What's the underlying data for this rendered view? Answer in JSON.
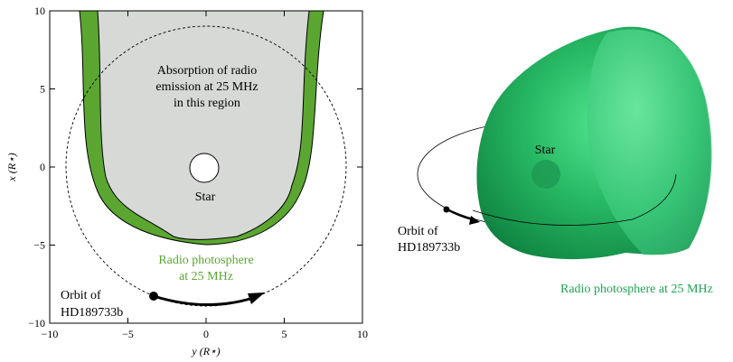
{
  "left_panel": {
    "x_axis_label": "y (R⋆)",
    "y_axis_label": "x (R⋆)",
    "x_ticks": [
      "−10",
      "−5",
      "0",
      "5",
      "10"
    ],
    "y_ticks": [
      "10",
      "5",
      "0",
      "−5",
      "−10"
    ],
    "absorption_text": [
      "Absorption of radio",
      "emission at 25 MHz",
      "in this region"
    ],
    "star_label": "Star",
    "photosphere_text": [
      "Radio photosphere",
      "at 25 MHz"
    ],
    "orbit_text": [
      "Orbit of",
      "HD189733b"
    ]
  },
  "right_panel": {
    "star_label": "Star",
    "orbit_text": [
      "Orbit of",
      "HD189733b"
    ],
    "photosphere_text": "Radio photosphere at 25 MHz"
  },
  "colors": {
    "photosphere_green": "#5aa631",
    "absorption_gray": "#d6d9d6",
    "label_green": "#5aa631",
    "label_green_3d": "#1ea353",
    "surface_green": "#22b060"
  }
}
